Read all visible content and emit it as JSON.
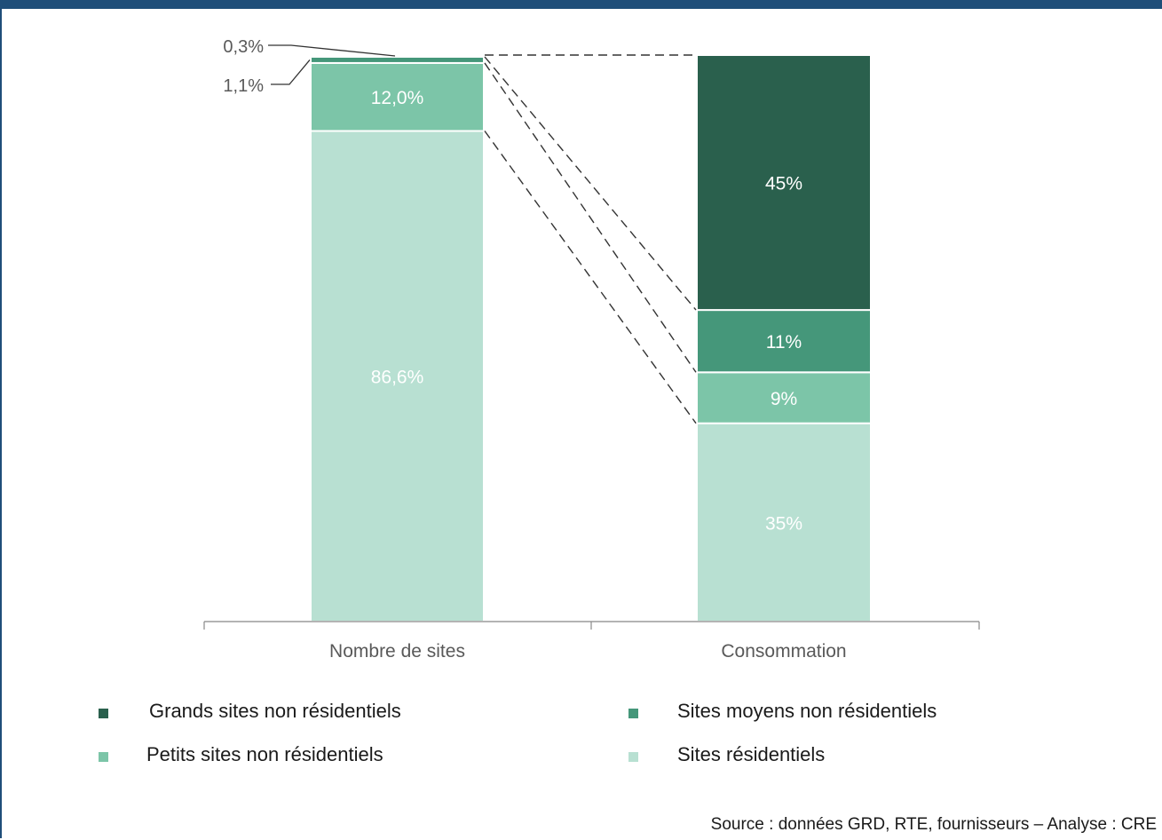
{
  "chart_data": {
    "type": "bar",
    "stacked": true,
    "categories": [
      "Nombre de sites",
      "Consommation"
    ],
    "series": [
      {
        "name": "Sites résidentiels",
        "color": "#b8e0d2",
        "values": [
          86.6,
          35
        ],
        "labels": [
          "86,6%",
          "35%"
        ]
      },
      {
        "name": "Petits sites non résidentiels",
        "color": "#7cc5a8",
        "values": [
          12.0,
          9
        ],
        "labels": [
          "12,0%",
          "9%"
        ]
      },
      {
        "name": "Sites moyens non résidentiels",
        "color": "#45977a",
        "values": [
          1.1,
          11
        ],
        "labels": [
          "1,1%",
          "11%"
        ]
      },
      {
        "name": "Grands sites non résidentiels",
        "color": "#2a604d",
        "values": [
          0.3,
          45
        ],
        "labels": [
          "0,3%",
          "45%"
        ]
      }
    ],
    "ylim": [
      0,
      100
    ],
    "legend": [
      {
        "label": "Grands sites non résidentiels",
        "color": "#2a604d"
      },
      {
        "label": "Sites moyens non résidentiels",
        "color": "#45977a"
      },
      {
        "label": "Petits sites non résidentiels",
        "color": "#7cc5a8"
      },
      {
        "label": "Sites résidentiels",
        "color": "#b8e0d2"
      }
    ],
    "legend_position": "bottom",
    "source": "Source : données GRD, RTE, fournisseurs – Analyse : CRE"
  }
}
